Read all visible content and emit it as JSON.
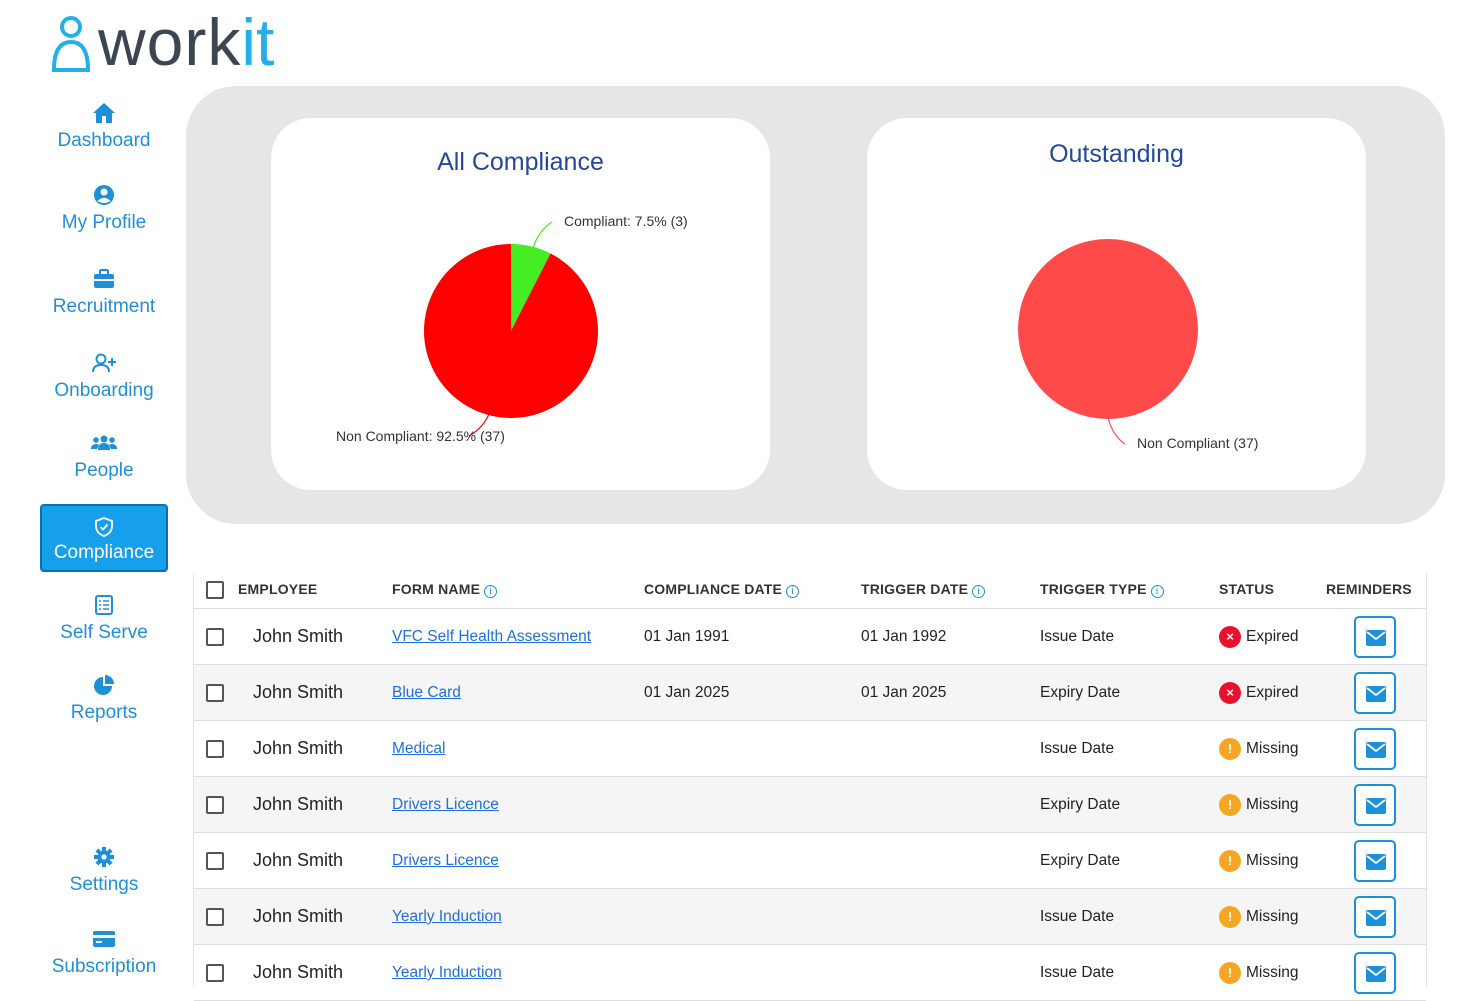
{
  "app": {
    "logo_text_dark": "work",
    "logo_text_light": "it",
    "brand_color": "#23b0e8"
  },
  "sidebar": {
    "items": [
      {
        "label": "Dashboard",
        "icon": "home-icon"
      },
      {
        "label": "My Profile",
        "icon": "user-circle-icon"
      },
      {
        "label": "Recruitment",
        "icon": "briefcase-icon"
      },
      {
        "label": "Onboarding",
        "icon": "user-plus-icon"
      },
      {
        "label": "People",
        "icon": "users-icon"
      },
      {
        "label": "Compliance",
        "icon": "shield-check-icon",
        "active": true
      },
      {
        "label": "Self Serve",
        "icon": "clipboard-list-icon"
      },
      {
        "label": "Reports",
        "icon": "pie-chart-icon"
      },
      {
        "label": "Settings",
        "icon": "gear-icon"
      },
      {
        "label": "Subscription",
        "icon": "credit-card-icon"
      }
    ]
  },
  "charts": {
    "all_compliance": {
      "title": "All Compliance",
      "compliant_label": "Compliant: 7.5% (3)",
      "non_compliant_label": "Non Compliant: 92.5% (37)"
    },
    "outstanding": {
      "title": "Outstanding",
      "non_compliant_label": "Non Compliant (37)"
    }
  },
  "chart_data": [
    {
      "type": "pie",
      "title": "All Compliance",
      "labels": [
        "Compliant",
        "Non Compliant"
      ],
      "values": [
        3,
        37
      ],
      "percent": [
        7.5,
        92.5
      ],
      "colors": [
        "#44ee22",
        "#ff0000"
      ]
    },
    {
      "type": "pie",
      "title": "Outstanding",
      "labels": [
        "Non Compliant"
      ],
      "values": [
        37
      ],
      "colors": [
        "#ff4a4a"
      ]
    }
  ],
  "table": {
    "headers": {
      "employee": "EMPLOYEE",
      "form_name": "FORM NAME",
      "compliance_date": "COMPLIANCE DATE",
      "trigger_date": "TRIGGER DATE",
      "trigger_type": "TRIGGER TYPE",
      "status": "STATUS",
      "reminders": "REMINDERS"
    },
    "rows": [
      {
        "employee": "John Smith",
        "form_name": "VFC Self Health Assessment",
        "compliance_date": "01 Jan 1991",
        "trigger_date": "01 Jan 1992",
        "trigger_type": "Issue Date",
        "status": "Expired"
      },
      {
        "employee": "John Smith",
        "form_name": "Blue Card",
        "compliance_date": "01 Jan 2025",
        "trigger_date": "01 Jan 2025",
        "trigger_type": "Expiry Date",
        "status": "Expired"
      },
      {
        "employee": "John Smith",
        "form_name": "Medical",
        "compliance_date": "",
        "trigger_date": "",
        "trigger_type": "Issue Date",
        "status": "Missing"
      },
      {
        "employee": "John Smith",
        "form_name": "Drivers Licence",
        "compliance_date": "",
        "trigger_date": "",
        "trigger_type": "Expiry Date",
        "status": "Missing"
      },
      {
        "employee": "John Smith",
        "form_name": "Drivers Licence",
        "compliance_date": "",
        "trigger_date": "",
        "trigger_type": "Expiry Date",
        "status": "Missing"
      },
      {
        "employee": "John Smith",
        "form_name": "Yearly Induction",
        "compliance_date": "",
        "trigger_date": "",
        "trigger_type": "Issue Date",
        "status": "Missing"
      },
      {
        "employee": "John Smith",
        "form_name": "Yearly Induction",
        "compliance_date": "",
        "trigger_date": "",
        "trigger_type": "Issue Date",
        "status": "Missing"
      }
    ],
    "status_colors": {
      "Expired": "#e8112d",
      "Missing": "#f5a623"
    },
    "status_icons": {
      "Expired": "×",
      "Missing": "!"
    }
  }
}
